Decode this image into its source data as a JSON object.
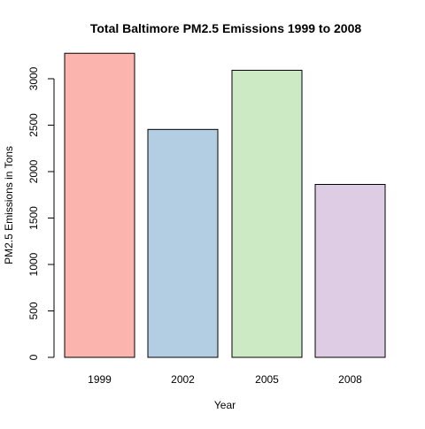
{
  "chart_data": {
    "type": "bar",
    "title": "Total Baltimore PM2.5 Emissions 1999 to 2008",
    "xlabel": "Year",
    "ylabel": "PM2.5 Emissions in Tons",
    "categories": [
      "1999",
      "2002",
      "2005",
      "2008"
    ],
    "values": [
      3274,
      2454,
      3091,
      1862
    ],
    "colors": [
      "#FBB4AE",
      "#B3CDE3",
      "#CCEBC5",
      "#DECBE4"
    ],
    "ylim": [
      0,
      3300
    ],
    "yticks": [
      0,
      500,
      1000,
      1500,
      2000,
      2500,
      3000
    ],
    "grid": false,
    "legend": "none"
  }
}
